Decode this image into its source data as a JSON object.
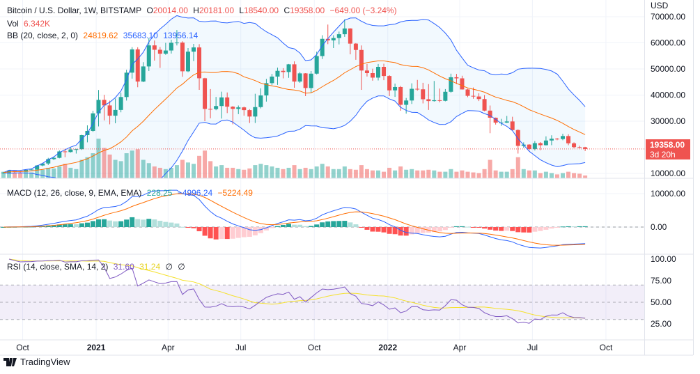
{
  "header": {
    "symbol": "Bitcoin / U.S. Dollar, 1W, BITSTAMP",
    "open_label": "O",
    "open": "20014.00",
    "high_label": "H",
    "high": "20181.00",
    "low_label": "L",
    "low": "18540.00",
    "close_label": "C",
    "close": "19358.00",
    "change": "−649.00 (−3.24%)"
  },
  "volume_legend": {
    "label": "Vol",
    "value": "6.342K"
  },
  "bb_legend": {
    "label": "BB (20, close, 2, 0)",
    "basis": "24819.62",
    "upper": "35683.10",
    "lower": "13956.14"
  },
  "macd_legend": {
    "label": "MACD (12, 26, close, 9, EMA, EMA)",
    "hist": "228.25",
    "macd": "−4996.24",
    "signal": "−5224.49"
  },
  "rsi_legend": {
    "label": "RSI (14, close, SMA, 14, 2)",
    "rsi": "31.60",
    "sma": "31.24",
    "extra1": "∅",
    "extra2": "∅"
  },
  "price_axis": {
    "currency": "USD",
    "last_price": "19358.00",
    "countdown": "3d 20h"
  },
  "branding": {
    "name": "TradingView"
  },
  "colors": {
    "up": "#26a69a",
    "down": "#ef5350",
    "bb_band": "#2962ff",
    "bb_basis": "#ff6d00",
    "macd": "#2962ff",
    "signal": "#ff6d00",
    "rsi": "#7e57c2",
    "rsi_sma": "#f5e12a"
  },
  "chart_data": {
    "type": "candlestick",
    "title": "Bitcoin / U.S. Dollar, 1W, BITSTAMP",
    "interval": "1W",
    "start_week": "2020-09-07",
    "y_ticks": [
      {
        "value": 70000,
        "label": "70000.00"
      },
      {
        "value": 60000,
        "label": "60000.00"
      },
      {
        "value": 50000,
        "label": "50000.00"
      },
      {
        "value": 40000,
        "label": "40000.00"
      },
      {
        "value": 30000,
        "label": "30000.00"
      },
      {
        "value": 10000,
        "label": "10000.00"
      }
    ],
    "macd_ticks": [
      {
        "value": 10000,
        "label": "10000.00"
      },
      {
        "value": 0,
        "label": "0.00"
      }
    ],
    "rsi_ticks": [
      {
        "value": 100,
        "label": "100.00"
      },
      {
        "value": 75,
        "label": "75.00"
      },
      {
        "value": 50,
        "label": "50.00"
      },
      {
        "value": 25,
        "label": "25.00"
      }
    ],
    "x_ticks": [
      {
        "label": "Oct",
        "date": "2020-10-01",
        "bold": false
      },
      {
        "label": "2021",
        "date": "2021-01-01",
        "bold": true
      },
      {
        "label": "Apr",
        "date": "2021-04-01",
        "bold": false
      },
      {
        "label": "Jul",
        "date": "2021-07-01",
        "bold": false
      },
      {
        "label": "Oct",
        "date": "2021-10-01",
        "bold": false
      },
      {
        "label": "2022",
        "date": "2022-01-01",
        "bold": true
      },
      {
        "label": "Apr",
        "date": "2022-04-01",
        "bold": false
      },
      {
        "label": "Jul",
        "date": "2022-07-01",
        "bold": false
      },
      {
        "label": "Oct",
        "date": "2022-10-01",
        "bold": false
      }
    ],
    "ohlc_fields": [
      "open",
      "high",
      "low",
      "close"
    ],
    "candles": [
      [
        10280,
        10580,
        9880,
        10330
      ],
      [
        10330,
        11180,
        10200,
        10920
      ],
      [
        10920,
        10980,
        10140,
        10780
      ],
      [
        10780,
        10950,
        10370,
        10670
      ],
      [
        10670,
        11490,
        10530,
        11370
      ],
      [
        11370,
        11740,
        11190,
        11500
      ],
      [
        11500,
        13220,
        11410,
        13030
      ],
      [
        13030,
        14070,
        12760,
        13800
      ],
      [
        13800,
        15960,
        13220,
        15480
      ],
      [
        15480,
        16490,
        15070,
        15970
      ],
      [
        15970,
        18820,
        15780,
        18410
      ],
      [
        18410,
        19480,
        16200,
        18180
      ],
      [
        18180,
        19920,
        18000,
        19150
      ],
      [
        19150,
        19420,
        17600,
        19270
      ],
      [
        19270,
        24800,
        19000,
        24670
      ],
      [
        24670,
        28400,
        21900,
        26270
      ],
      [
        26270,
        34000,
        25900,
        33000
      ],
      [
        33000,
        41950,
        28000,
        38150
      ],
      [
        38150,
        40100,
        30300,
        36030
      ],
      [
        36030,
        37850,
        28800,
        32100
      ],
      [
        32100,
        38700,
        29200,
        34300
      ],
      [
        34300,
        40900,
        33400,
        39250
      ],
      [
        39250,
        49700,
        37900,
        48580
      ],
      [
        48580,
        58350,
        46300,
        57490
      ],
      [
        57490,
        58300,
        43000,
        45170
      ],
      [
        45170,
        52600,
        44950,
        50960
      ],
      [
        50960,
        61800,
        49200,
        59020
      ],
      [
        59020,
        60900,
        53200,
        57350
      ],
      [
        57350,
        58400,
        50400,
        55840
      ],
      [
        55840,
        60000,
        55400,
        57060
      ],
      [
        57060,
        61200,
        55900,
        60030
      ],
      [
        60030,
        64900,
        59000,
        60100
      ],
      [
        60100,
        60600,
        47000,
        49100
      ],
      [
        49100,
        58000,
        48800,
        56620
      ],
      [
        56620,
        59600,
        53000,
        58240
      ],
      [
        58240,
        59500,
        42000,
        46430
      ],
      [
        46430,
        46600,
        30000,
        34700
      ],
      [
        34700,
        42300,
        31100,
        34620
      ],
      [
        34620,
        39300,
        34200,
        35800
      ],
      [
        35800,
        41300,
        31000,
        39100
      ],
      [
        39100,
        41000,
        33100,
        35550
      ],
      [
        35550,
        35800,
        28800,
        34700
      ],
      [
        34700,
        36000,
        32700,
        35290
      ],
      [
        35290,
        35600,
        32100,
        34240
      ],
      [
        34240,
        34600,
        29300,
        31780
      ],
      [
        31780,
        40500,
        29300,
        35400
      ],
      [
        35400,
        42600,
        34900,
        39850
      ],
      [
        39850,
        46200,
        37500,
        44560
      ],
      [
        44560,
        48100,
        43800,
        47080
      ],
      [
        47080,
        50500,
        43900,
        49280
      ],
      [
        49280,
        50300,
        46400,
        48820
      ],
      [
        48820,
        51900,
        46600,
        51770
      ],
      [
        51770,
        52900,
        42800,
        45170
      ],
      [
        45170,
        48800,
        44700,
        48300
      ],
      [
        48300,
        48400,
        39600,
        42700
      ],
      [
        42700,
        49200,
        40900,
        48200
      ],
      [
        48200,
        56600,
        47900,
        54940
      ],
      [
        54940,
        62900,
        53800,
        61530
      ],
      [
        61530,
        67000,
        59500,
        60930
      ],
      [
        60930,
        62900,
        58000,
        61840
      ],
      [
        61840,
        64300,
        59400,
        63300
      ],
      [
        63300,
        69000,
        62300,
        65500
      ],
      [
        65500,
        65600,
        55600,
        59700
      ],
      [
        59700,
        59900,
        53500,
        57270
      ],
      [
        57270,
        59000,
        42000,
        49400
      ],
      [
        49400,
        51900,
        47100,
        48400
      ],
      [
        48400,
        50100,
        45500,
        46680
      ],
      [
        46680,
        51900,
        45600,
        50800
      ],
      [
        50800,
        52000,
        45700,
        47300
      ],
      [
        47300,
        47600,
        39600,
        41800
      ],
      [
        41800,
        44400,
        39300,
        43080
      ],
      [
        43080,
        43500,
        34000,
        36270
      ],
      [
        36270,
        38900,
        32900,
        37920
      ],
      [
        37920,
        44500,
        36600,
        42400
      ],
      [
        42400,
        45800,
        41700,
        42200
      ],
      [
        42200,
        44700,
        36800,
        38400
      ],
      [
        38400,
        44200,
        34300,
        37700
      ],
      [
        37700,
        45400,
        37500,
        38030
      ],
      [
        38030,
        42500,
        37200,
        37800
      ],
      [
        37800,
        42300,
        37600,
        41260
      ],
      [
        41260,
        48200,
        40900,
        46820
      ],
      [
        46820,
        48100,
        44200,
        46400
      ],
      [
        46400,
        47400,
        42100,
        42150
      ],
      [
        42150,
        42400,
        39200,
        39700
      ],
      [
        39700,
        42900,
        38600,
        39450
      ],
      [
        39450,
        40700,
        37700,
        38470
      ],
      [
        38470,
        40000,
        33800,
        34050
      ],
      [
        34050,
        36000,
        25400,
        31330
      ],
      [
        31330,
        31400,
        28700,
        29450
      ],
      [
        29450,
        30900,
        28200,
        29450
      ],
      [
        29450,
        32000,
        29300,
        29900
      ],
      [
        29900,
        31700,
        26600,
        26600
      ],
      [
        26600,
        26900,
        17600,
        20550
      ],
      [
        20550,
        21900,
        19800,
        21030
      ],
      [
        21030,
        21200,
        18800,
        19310
      ],
      [
        19310,
        22400,
        18800,
        21600
      ],
      [
        21600,
        22000,
        18900,
        20800
      ],
      [
        20800,
        24200,
        20700,
        22600
      ],
      [
        22600,
        24600,
        20800,
        23300
      ],
      [
        23300,
        23600,
        22700,
        23170
      ],
      [
        23170,
        25200,
        22700,
        24310
      ],
      [
        24310,
        25000,
        20800,
        21530
      ],
      [
        21530,
        21900,
        19600,
        20050
      ],
      [
        20050,
        20600,
        19600,
        20014
      ],
      [
        20014,
        20181,
        18540,
        19358
      ]
    ],
    "volume_k": [
      12,
      14,
      11,
      10,
      12,
      11,
      16,
      15,
      18,
      17,
      20,
      24,
      18,
      16,
      30,
      34,
      40,
      62,
      48,
      38,
      30,
      28,
      40,
      44,
      46,
      30,
      25,
      20,
      18,
      16,
      18,
      22,
      30,
      26,
      24,
      36,
      44,
      28,
      20,
      22,
      18,
      18,
      16,
      15,
      17,
      22,
      24,
      22,
      20,
      18,
      16,
      18,
      22,
      16,
      18,
      16,
      20,
      24,
      20,
      16,
      16,
      20,
      16,
      15,
      22,
      16,
      14,
      14,
      12,
      18,
      14,
      20,
      15,
      16,
      14,
      14,
      15,
      14,
      12,
      12,
      16,
      12,
      14,
      12,
      11,
      10,
      16,
      30,
      14,
      12,
      12,
      16,
      34,
      16,
      14,
      14,
      10,
      12,
      10,
      8,
      10,
      12,
      10,
      9,
      6.342
    ],
    "indicators": {
      "bb": {
        "length": 20,
        "mult": 2
      },
      "macd": {
        "fast": 12,
        "slow": 26,
        "signal": 9
      },
      "rsi": {
        "length": 14,
        "sma": 14,
        "upper_band": 70,
        "lower_band": 30,
        "mid": 50
      }
    }
  }
}
